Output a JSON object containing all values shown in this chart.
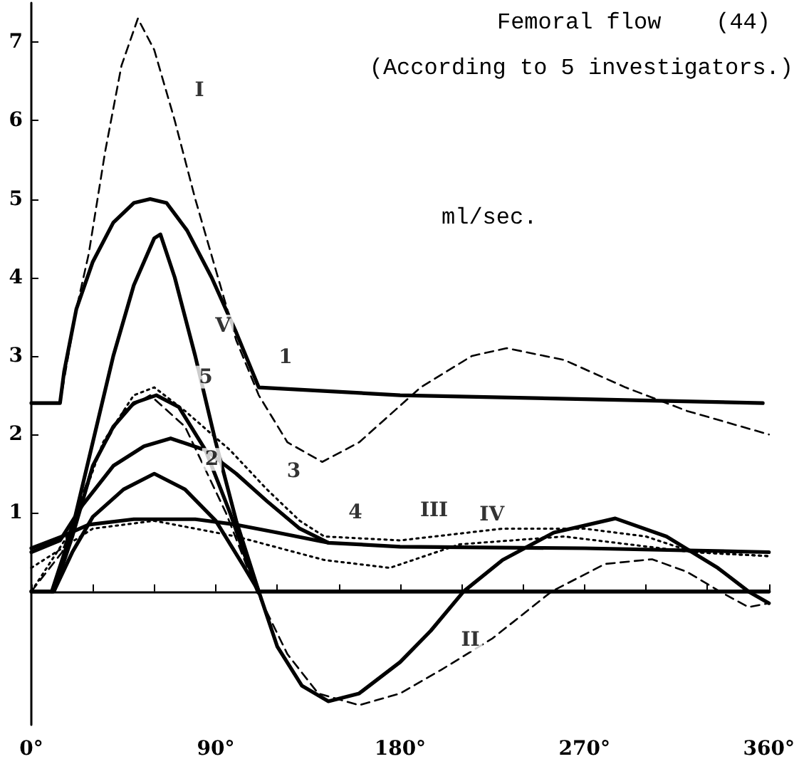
{
  "chart_data": {
    "type": "line",
    "title": "Femoral flow    (44)",
    "subtitle": "(According to 5 investigators.)",
    "ylabel": "ml/sec.",
    "xlim": [
      0,
      360
    ],
    "xticks": [
      {
        "value": 0,
        "label": "0°"
      },
      {
        "value": 30,
        "label": null
      },
      {
        "value": 60,
        "label": null
      },
      {
        "value": 90,
        "label": "90°"
      },
      {
        "value": 120,
        "label": null
      },
      {
        "value": 150,
        "label": null
      },
      {
        "value": 180,
        "label": "180°"
      },
      {
        "value": 210,
        "label": null
      },
      {
        "value": 240,
        "label": null
      },
      {
        "value": 270,
        "label": "270°"
      },
      {
        "value": 300,
        "label": null
      },
      {
        "value": 330,
        "label": null
      },
      {
        "value": 360,
        "label": "360°"
      }
    ],
    "ylim": [
      -1.7,
      7.5
    ],
    "yticks": [
      {
        "value": 0,
        "label": null
      },
      1,
      2,
      3,
      4,
      5,
      6,
      7
    ],
    "marker": "none",
    "series": [
      {
        "color": "#000000",
        "line_style": "solid",
        "x": [
          0,
          14,
          16,
          22,
          30,
          40,
          50,
          58,
          66,
          76,
          88,
          100,
          111,
          180,
          270,
          357
        ],
        "values": [
          2.4,
          2.4,
          2.8,
          3.6,
          4.2,
          4.7,
          4.95,
          5.0,
          4.95,
          4.6,
          4.0,
          3.3,
          2.6,
          2.5,
          2.45,
          2.4
        ]
      },
      {
        "color": "#000000",
        "line_style": "solid",
        "x": [
          0,
          11,
          20,
          30,
          45,
          60,
          75,
          90,
          103,
          111
        ],
        "values": [
          0,
          0,
          0.5,
          0.95,
          1.3,
          1.5,
          1.3,
          0.9,
          0.35,
          0
        ]
      },
      {
        "color": "#000000",
        "line_style": "solid",
        "x": [
          0,
          14,
          25,
          40,
          55,
          68,
          85,
          100,
          115,
          131,
          145
        ],
        "values": [
          0.5,
          0.65,
          1.1,
          1.6,
          1.85,
          1.95,
          1.8,
          1.5,
          1.15,
          0.8,
          0.62
        ]
      },
      {
        "color": "#000000",
        "line_style": "solid",
        "x": [
          0,
          15,
          28,
          50,
          80,
          100,
          120,
          145,
          180,
          270,
          360
        ],
        "values": [
          0.55,
          0.7,
          0.85,
          0.92,
          0.92,
          0.85,
          0.75,
          0.62,
          0.57,
          0.55,
          0.5
        ]
      },
      {
        "color": "#000000",
        "line_style": "solid",
        "x": [
          0,
          11,
          20,
          30,
          40,
          50,
          61,
          72,
          85,
          97,
          105,
          111,
          180,
          270,
          360
        ],
        "values": [
          0,
          0,
          0.7,
          1.6,
          2.1,
          2.4,
          2.5,
          2.35,
          1.8,
          1.0,
          0.4,
          0,
          0,
          0,
          0
        ]
      },
      {
        "color": "#000000",
        "line_style": "dashed",
        "x": [
          14,
          22,
          28,
          36,
          44,
          52,
          60,
          70,
          80,
          90,
          100,
          111,
          125,
          142,
          160,
          190,
          215,
          232,
          260,
          290,
          320,
          360
        ],
        "values": [
          2.4,
          3.6,
          4.3,
          5.6,
          6.7,
          7.3,
          6.9,
          6.0,
          5.0,
          4.1,
          3.2,
          2.5,
          1.9,
          1.65,
          1.9,
          2.6,
          3.0,
          3.1,
          2.95,
          2.6,
          2.3,
          2.0
        ]
      },
      {
        "color": "#000000",
        "line_style": "dashed",
        "x": [
          0,
          15,
          30,
          45,
          58,
          75,
          95,
          110,
          125,
          140,
          160,
          180,
          200,
          225,
          254,
          280,
          303,
          320,
          336,
          350,
          360
        ],
        "values": [
          0,
          0.5,
          1.6,
          2.3,
          2.5,
          2.1,
          1.0,
          0,
          -0.8,
          -1.3,
          -1.45,
          -1.3,
          -1.0,
          -0.6,
          0,
          0.35,
          0.41,
          0.25,
          0,
          -0.2,
          -0.15
        ]
      },
      {
        "color": "#000000",
        "line_style": "dotted",
        "x": [
          0,
          20,
          35,
          50,
          60,
          75,
          97,
          115,
          131,
          143,
          180,
          230,
          270,
          300,
          323,
          360
        ],
        "values": [
          0,
          0.8,
          1.9,
          2.5,
          2.6,
          2.3,
          1.8,
          1.3,
          0.9,
          0.7,
          0.65,
          0.8,
          0.8,
          0.7,
          0.5,
          0.45
        ]
      },
      {
        "color": "#000000",
        "line_style": "dotted",
        "x": [
          0,
          30,
          60,
          100,
          143,
          175,
          209,
          260,
          323,
          360
        ],
        "values": [
          0.3,
          0.8,
          0.9,
          0.7,
          0.4,
          0.3,
          0.6,
          0.7,
          0.5,
          0.45
        ]
      },
      {
        "color": "#000000",
        "line_style": "solid",
        "x": [
          10,
          20,
          30,
          40,
          50,
          60,
          63,
          70,
          80,
          90,
          100,
          111,
          120,
          132,
          145,
          160,
          180,
          195,
          211,
          230,
          255,
          285,
          310,
          335,
          350,
          360
        ],
        "values": [
          0,
          0.8,
          1.9,
          3.0,
          3.9,
          4.5,
          4.55,
          4.0,
          3.0,
          1.9,
          0.9,
          0,
          -0.7,
          -1.2,
          -1.4,
          -1.3,
          -0.9,
          -0.5,
          0,
          0.4,
          0.75,
          0.93,
          0.7,
          0.3,
          0,
          -0.15
        ]
      }
    ],
    "annotations": [
      {
        "text": "I",
        "x": 70,
        "y": 6.0
      },
      {
        "text": "V",
        "x": 80,
        "y": 3.0
      },
      {
        "text": "1",
        "x": 111,
        "y": 2.6
      },
      {
        "text": "5",
        "x": 72,
        "y": 2.35
      },
      {
        "text": "2",
        "x": 75,
        "y": 1.3
      },
      {
        "text": "3",
        "x": 115,
        "y": 1.15
      },
      {
        "text": "4",
        "x": 145,
        "y": 0.62
      },
      {
        "text": "III",
        "x": 180,
        "y": 0.65
      },
      {
        "text": "IV",
        "x": 209,
        "y": 0.6
      },
      {
        "text": "II",
        "x": 200,
        "y": -1.0
      }
    ]
  }
}
